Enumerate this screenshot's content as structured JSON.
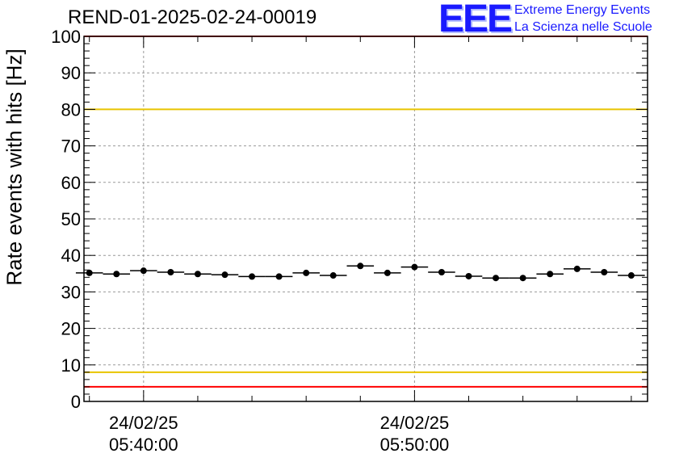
{
  "header": {
    "run_title": "REND-01-2025-02-24-00019",
    "logo_text": "EEE",
    "logo_line1": "Extreme Energy Events",
    "logo_line2": "La Scienza nelle Scuole"
  },
  "colors": {
    "threshold_red": "#ff0000",
    "threshold_yellow": "#e8c400",
    "points": "#000000",
    "grid": "#999999",
    "logo": "#1a1aff"
  },
  "chart_data": {
    "type": "scatter",
    "title": "REND-01-2025-02-24-00019",
    "xlabel": "",
    "ylabel": "Rate events with hits [Hz]",
    "ylim": [
      0,
      100
    ],
    "yticks": [
      0,
      10,
      20,
      30,
      40,
      50,
      60,
      70,
      80,
      90,
      100
    ],
    "xlim_minutes": [
      -2.2,
      18.6
    ],
    "xtick_labels": [
      {
        "minute": 0,
        "date": "24/02/25",
        "time": "05:40:00"
      },
      {
        "minute": 10,
        "date": "24/02/25",
        "time": "05:50:00"
      }
    ],
    "bin_width_minutes": 1.0,
    "x_minutes": [
      -2,
      -1,
      0,
      1,
      2,
      3,
      4,
      5,
      6,
      7,
      8,
      9,
      10,
      11,
      12,
      13,
      14,
      15,
      16,
      17,
      18
    ],
    "values": [
      35.2,
      34.9,
      35.8,
      35.4,
      34.9,
      34.7,
      34.2,
      34.2,
      35.2,
      34.5,
      37.1,
      35.2,
      36.8,
      35.4,
      34.3,
      33.8,
      33.8,
      34.9,
      36.3,
      35.4,
      34.5
    ],
    "reference_lines": [
      {
        "value": 100,
        "color": "#ff0000"
      },
      {
        "value": 80,
        "color": "#e8c400"
      },
      {
        "value": 8,
        "color": "#e8c400"
      },
      {
        "value": 4,
        "color": "#ff0000"
      }
    ],
    "grid": true
  }
}
